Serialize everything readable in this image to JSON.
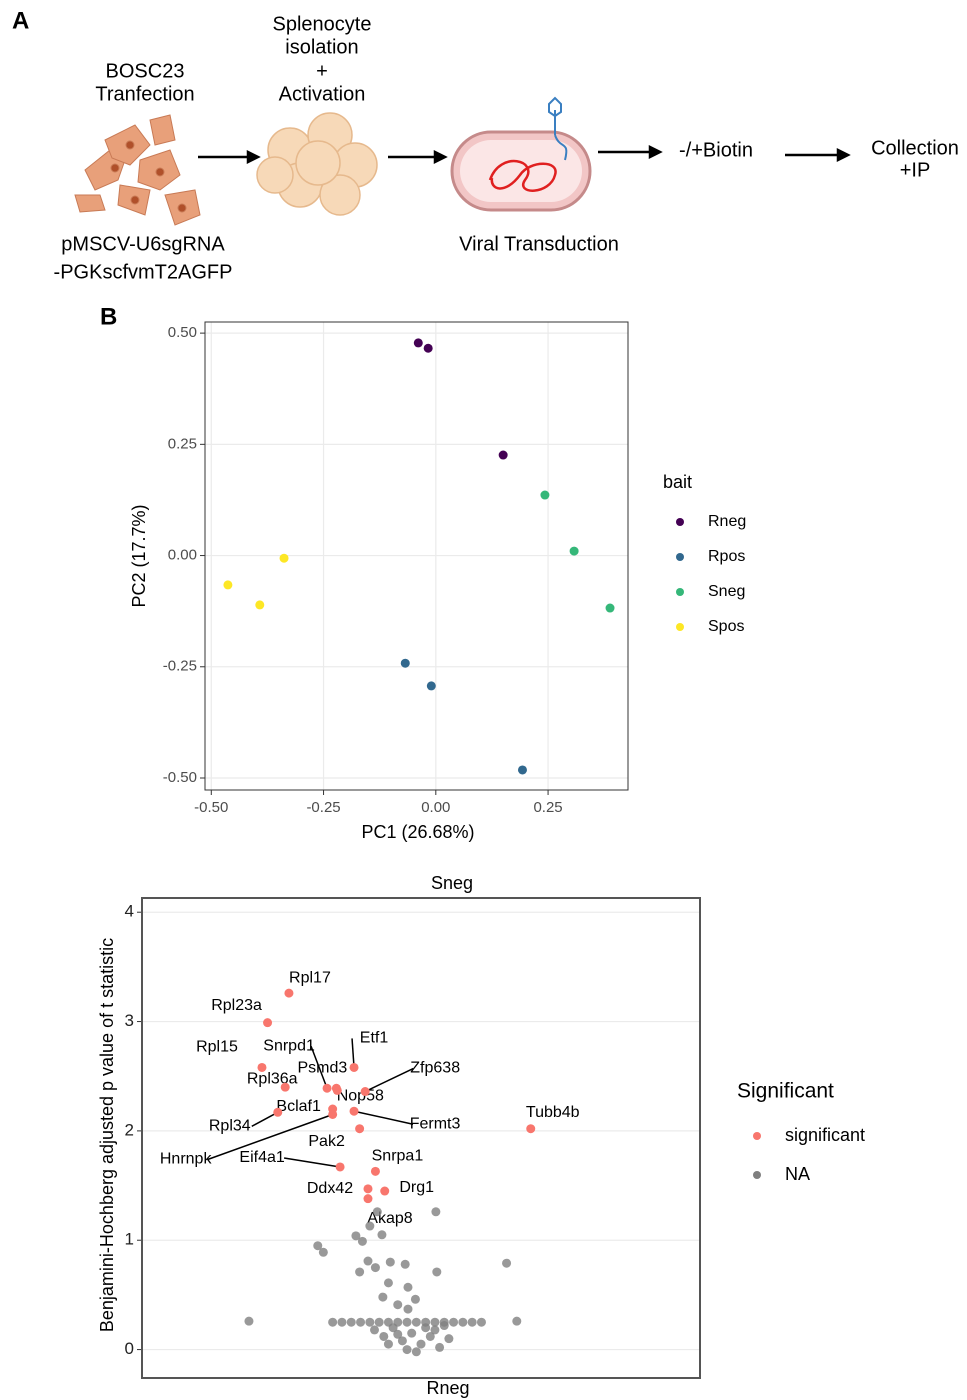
{
  "panel_a": {
    "label": "A",
    "transfection": [
      "BOSC23",
      "Tranfection"
    ],
    "splenocyte": [
      "Splenocyte",
      "isolation",
      "+",
      "Activation"
    ],
    "plasmid": [
      "pMSCV-U6sgRNA",
      "-PGKscfvmT2AGFP"
    ],
    "transduction": "Viral Transduction",
    "biotin": "-/+Biotin",
    "collection": [
      "Collection",
      "+IP"
    ]
  },
  "panel_b": {
    "label": "B"
  },
  "chart_data": [
    {
      "type": "scatter",
      "x_label": "PC1 (26.68%)",
      "y_label": "PC2 (17.7%)",
      "legend_title": "bait",
      "xlim": [
        -0.514,
        0.428
      ],
      "ylim": [
        -0.527,
        0.525
      ],
      "xticks": [
        {
          "value": -0.5,
          "label": "-0.50"
        },
        -0.25,
        {
          "value": 0,
          "label": "0.00"
        },
        0.25
      ],
      "yticks": [
        {
          "value": 0.5,
          "label": "0.50"
        },
        0.25,
        {
          "value": 0,
          "label": "0.00"
        },
        -0.25,
        {
          "value": -0.5,
          "label": "-0.50"
        }
      ],
      "grid": true,
      "series": [
        {
          "name": "Rneg",
          "color": "#440154",
          "x": [
            -0.039,
            -0.017,
            0.15
          ],
          "values": [
            0.478,
            0.466,
            0.226
          ]
        },
        {
          "name": "Rpos",
          "color": "#31688e",
          "x": [
            -0.068,
            -0.01,
            0.193
          ],
          "values": [
            -0.242,
            -0.293,
            -0.482
          ]
        },
        {
          "name": "Sneg",
          "color": "#35b779",
          "x": [
            0.243,
            0.308,
            0.388
          ],
          "values": [
            0.136,
            0.01,
            -0.118
          ]
        },
        {
          "name": "Spos",
          "color": "#fde725",
          "x": [
            -0.338,
            -0.463,
            -0.392
          ],
          "values": [
            -0.006,
            -0.066,
            -0.111
          ]
        }
      ]
    },
    {
      "type": "scatter",
      "title": "Sneg",
      "x_label": "Rneg",
      "y_label": "Benjamini-Hochberg adjusted p value of t statistic",
      "legend_title": "Significant",
      "xlim": [
        -3,
        3
      ],
      "ylim": [
        -0.26,
        4.13
      ],
      "yticks": [
        0,
        1,
        2,
        3,
        4
      ],
      "grid": true,
      "series": [
        {
          "name": "significant",
          "color": "#f8766d",
          "labels": [
            "Rpl17",
            "Rpl23a",
            "Rpl15",
            "Rpl36a",
            "Snrpd1",
            "Psmd3",
            "Etf1",
            "Zfp638",
            "Nop58",
            "Bclaf1",
            "Rpl34",
            "Fermt3",
            "Tubb4b",
            "Pak2",
            "Hnrnpk",
            "Eif4a1",
            "Snrpa1",
            "Ddx42",
            "Drg1",
            "Akap8"
          ],
          "x": [
            -1.42,
            -1.65,
            -1.71,
            -1.46,
            -1.01,
            -0.91,
            -0.72,
            -0.6,
            -0.9,
            -0.95,
            -1.54,
            -0.72,
            1.18,
            -0.66,
            -0.95,
            -0.87,
            -0.49,
            -0.57,
            -0.39,
            -0.57
          ],
          "values": [
            3.26,
            2.99,
            2.58,
            2.4,
            2.39,
            2.39,
            2.58,
            2.36,
            2.37,
            2.2,
            2.17,
            2.18,
            2.02,
            2.02,
            2.15,
            1.67,
            1.63,
            1.47,
            1.45,
            1.38
          ]
        },
        {
          "name": "NA",
          "color": "#7f7f7f",
          "x": [
            -1.85,
            1.03,
            0.92,
            0.16,
            -1.11,
            -1.05,
            -0.7,
            -0.63,
            -0.42,
            -0.47,
            -0.55,
            -0.57,
            -0.49,
            -0.33,
            -0.17,
            0.17,
            -0.66,
            -0.35,
            -0.14,
            -0.41,
            -0.25,
            -0.06,
            -0.14,
            -0.95,
            -0.85,
            -0.75,
            -0.65,
            -0.55,
            -0.45,
            -0.35,
            -0.25,
            -0.15,
            -0.05,
            0.05,
            0.15,
            0.25,
            0.35,
            0.45,
            0.55,
            0.65,
            -0.5,
            -0.4,
            -0.3,
            -0.2,
            -0.1,
            0,
            0.1,
            0.2,
            0.3,
            -0.15,
            0.05,
            -0.35,
            0.15,
            -0.05,
            0.25,
            -0.25
          ],
          "values": [
            0.26,
            0.26,
            0.79,
            1.26,
            0.95,
            0.89,
            1.04,
            0.99,
            1.05,
            1.26,
            1.13,
            0.81,
            0.75,
            0.8,
            0.78,
            0.71,
            0.71,
            0.61,
            0.57,
            0.48,
            0.41,
            0.46,
            0.37,
            0.25,
            0.25,
            0.25,
            0.25,
            0.25,
            0.25,
            0.25,
            0.25,
            0.25,
            0.25,
            0.25,
            0.25,
            0.25,
            0.25,
            0.25,
            0.25,
            0.25,
            0.18,
            0.12,
            0.2,
            0.08,
            0.15,
            0.05,
            0.12,
            0.02,
            0.1,
            0,
            0.2,
            0.05,
            0.18,
            -0.02,
            0.22,
            0.14
          ]
        }
      ]
    }
  ]
}
